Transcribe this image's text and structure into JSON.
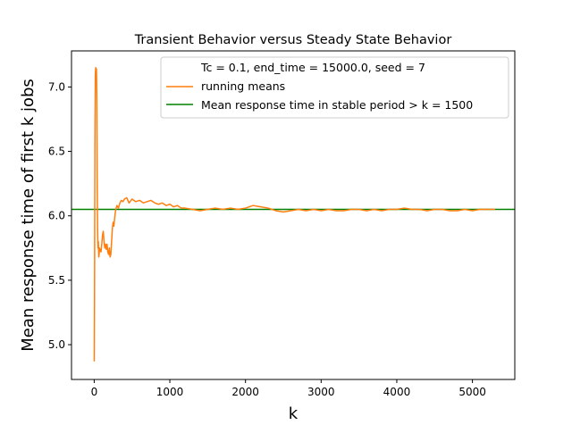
{
  "chart_data": {
    "type": "line",
    "title": "Transient Behavior versus Steady State Behavior",
    "xlabel": "k",
    "ylabel": "Mean response time of first k jobs",
    "xlim": [
      -300,
      5560
    ],
    "ylim": [
      4.73,
      7.28
    ],
    "x_ticks": [
      0,
      1000,
      2000,
      3000,
      4000,
      5000
    ],
    "x_tick_labels": [
      "0",
      "1000",
      "2000",
      "3000",
      "4000",
      "5000"
    ],
    "y_ticks": [
      5.0,
      5.5,
      6.0,
      6.5,
      7.0
    ],
    "y_tick_labels": [
      "5.0",
      "5.5",
      "6.0",
      "6.5",
      "7.0"
    ],
    "grid": false,
    "legend_position": "top-right",
    "legend": [
      {
        "label": "Tc = 0.1, end_time = 15000.0, seed = 7",
        "color": "none"
      },
      {
        "label": "running means",
        "color": "#ff7f0e"
      },
      {
        "label": "Mean response time in stable period > k = 1500",
        "color": "#008000"
      }
    ],
    "series": [
      {
        "name": "running means",
        "color": "#ff7f0e",
        "x": [
          1,
          5,
          10,
          15,
          20,
          25,
          30,
          35,
          40,
          45,
          50,
          55,
          60,
          65,
          70,
          80,
          90,
          100,
          110,
          120,
          130,
          140,
          150,
          160,
          170,
          180,
          190,
          200,
          210,
          220,
          230,
          240,
          250,
          260,
          270,
          280,
          290,
          300,
          320,
          340,
          360,
          380,
          400,
          430,
          460,
          500,
          550,
          600,
          650,
          700,
          750,
          800,
          850,
          900,
          950,
          1000,
          1050,
          1100,
          1150,
          1200,
          1300,
          1400,
          1500,
          1600,
          1700,
          1800,
          1900,
          2000,
          2100,
          2200,
          2300,
          2400,
          2500,
          2600,
          2700,
          2800,
          2900,
          3000,
          3100,
          3200,
          3300,
          3400,
          3500,
          3600,
          3700,
          3800,
          3900,
          4000,
          4100,
          4200,
          4300,
          4400,
          4500,
          4600,
          4700,
          4800,
          4900,
          5000,
          5100,
          5200,
          5300
        ],
        "y": [
          4.87,
          5.5,
          6.6,
          7.1,
          7.15,
          7.1,
          7.14,
          6.9,
          6.2,
          5.9,
          5.75,
          5.8,
          5.68,
          5.7,
          5.75,
          5.73,
          5.72,
          5.78,
          5.85,
          5.88,
          5.8,
          5.75,
          5.78,
          5.74,
          5.78,
          5.72,
          5.7,
          5.75,
          5.68,
          5.7,
          5.8,
          5.9,
          5.95,
          5.92,
          5.98,
          6.03,
          6.06,
          6.08,
          6.06,
          6.1,
          6.12,
          6.11,
          6.13,
          6.14,
          6.1,
          6.13,
          6.11,
          6.12,
          6.1,
          6.11,
          6.12,
          6.1,
          6.09,
          6.1,
          6.08,
          6.09,
          6.07,
          6.08,
          6.06,
          6.06,
          6.05,
          6.04,
          6.05,
          6.06,
          6.05,
          6.06,
          6.05,
          6.06,
          6.08,
          6.07,
          6.06,
          6.04,
          6.03,
          6.04,
          6.05,
          6.04,
          6.05,
          6.04,
          6.05,
          6.04,
          6.04,
          6.05,
          6.05,
          6.04,
          6.05,
          6.04,
          6.05,
          6.05,
          6.06,
          6.05,
          6.05,
          6.04,
          6.05,
          6.05,
          6.04,
          6.04,
          6.05,
          6.04,
          6.05,
          6.05,
          6.05
        ]
      },
      {
        "name": "Mean response time in stable period > k = 1500",
        "color": "#008000",
        "type": "hline",
        "y": 6.05
      }
    ]
  }
}
